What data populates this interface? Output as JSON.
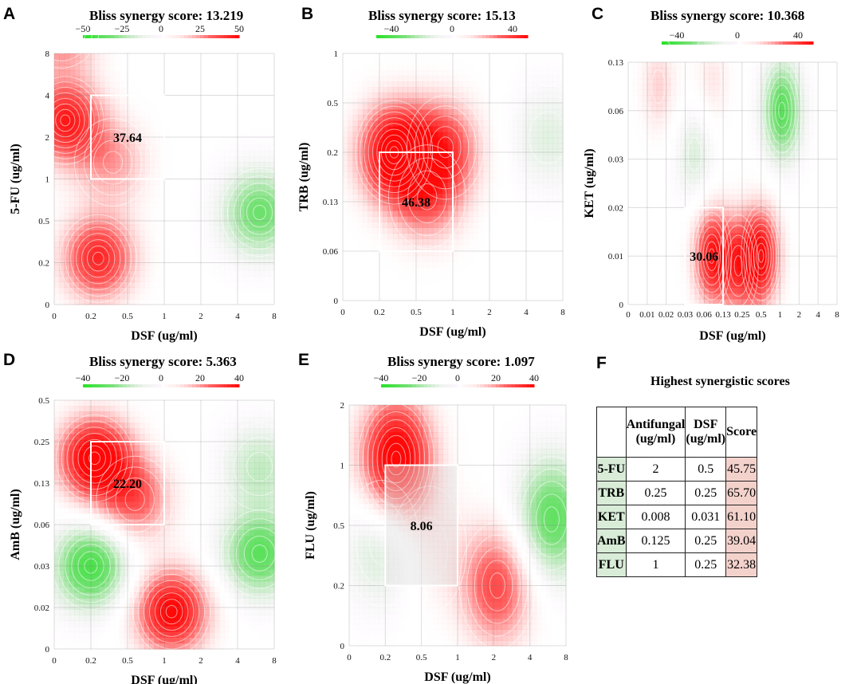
{
  "figure": {
    "ylabel_default": "ug/ml",
    "table": {
      "letter": "F",
      "title": "Highest synergistic scores",
      "headers": [
        "",
        "Antifungal (ug/ml)",
        "DSF (ug/ml)",
        "Score"
      ],
      "rows": [
        [
          "5-FU",
          "2",
          "0.5",
          "45.75"
        ],
        [
          "TRB",
          "0.25",
          "0.25",
          "65.70"
        ],
        [
          "KET",
          "0.008",
          "0.031",
          "61.10"
        ],
        [
          "AmB",
          "0.125",
          "0.25",
          "39.04"
        ],
        [
          "FLU",
          "1",
          "0.25",
          "32.38"
        ]
      ]
    }
  },
  "chart_data": [
    {
      "letter": "A",
      "type": "heatmap",
      "title": "Bliss synergy score: 13.219",
      "xlabel": "DSF  (ug/ml)",
      "ylabel": "5-FU  (ug/ml)",
      "x_ticks": [
        "0",
        "0.2",
        "0.5",
        "1",
        "2",
        "4",
        "8"
      ],
      "y_ticks": [
        "0",
        "0.2",
        "0.5",
        "1",
        "2",
        "4",
        "8"
      ],
      "colorbar_ticks": [
        "−50",
        "−25",
        "0",
        "25",
        "50"
      ],
      "colorbar_range": [
        -50,
        50
      ],
      "max_region": {
        "x_range": [
          "0.2",
          "1"
        ],
        "y_range": [
          "1",
          "4"
        ],
        "value": "37.64"
      },
      "peaks": [
        {
          "x": 0.3,
          "y": 4.4,
          "value": 45
        },
        {
          "x": 1.2,
          "y": 1.1,
          "value": 44
        },
        {
          "x": 0.2,
          "y": 6.7,
          "value": 34
        },
        {
          "x": 1.6,
          "y": 3.4,
          "value": 22
        },
        {
          "x": 5.6,
          "y": 2.2,
          "value": -34
        }
      ]
    },
    {
      "letter": "B",
      "type": "heatmap",
      "title": "Bliss synergy score: 15.13",
      "xlabel": "DSF  (ug/ml)",
      "ylabel": "TRB  (ug/ml)",
      "x_ticks": [
        "0",
        "0.2",
        "0.5",
        "1",
        "2",
        "4",
        "8"
      ],
      "y_ticks": [
        "0",
        "0.06",
        "0.13",
        "0.2",
        "0.5",
        "1"
      ],
      "colorbar_ticks": [
        "−40",
        "0",
        "40"
      ],
      "colorbar_range": [
        -50,
        50
      ],
      "max_region": {
        "x_range": [
          "0.2",
          "1"
        ],
        "y_range": [
          "0.06",
          "0.2"
        ],
        "value": "46.38"
      },
      "peaks": [
        {
          "x": 1.4,
          "y": 3.0,
          "value": 52
        },
        {
          "x": 2.3,
          "y": 2.1,
          "value": 26
        },
        {
          "x": 2.8,
          "y": 3.1,
          "value": 32
        },
        {
          "x": 5.6,
          "y": 3.3,
          "value": -14
        }
      ]
    },
    {
      "letter": "C",
      "type": "heatmap",
      "title": "Bliss synergy score: 10.368",
      "xlabel": "DSF  (ug/ml)",
      "ylabel": "KET  (ug/ml)",
      "x_ticks": [
        "0",
        "0.01",
        "0.02",
        "0.03",
        "0.06",
        "0.13",
        "0.25",
        "0.5",
        "1",
        "2",
        "4",
        "8"
      ],
      "y_ticks": [
        "0",
        "0.01",
        "0.02",
        "0.03",
        "0.06",
        "0.13"
      ],
      "colorbar_ticks": [
        "−40",
        "0",
        "40"
      ],
      "colorbar_range": [
        -50,
        50
      ],
      "max_region": {
        "x_range": [
          "0.03",
          "0.13"
        ],
        "y_range": [
          "0",
          "0.02"
        ],
        "value": "30.06"
      },
      "peaks": [
        {
          "x": 4.4,
          "y": 1.0,
          "value": 44
        },
        {
          "x": 7.0,
          "y": 1.0,
          "value": 46
        },
        {
          "x": 5.8,
          "y": 0.8,
          "value": 30
        },
        {
          "x": 8.1,
          "y": 4.0,
          "value": -38
        },
        {
          "x": 3.5,
          "y": 3.1,
          "value": -16
        },
        {
          "x": 1.6,
          "y": 4.5,
          "value": 16
        },
        {
          "x": 4.4,
          "y": 4.6,
          "value": 12
        }
      ]
    },
    {
      "letter": "D",
      "type": "heatmap",
      "title": "Bliss synergy score: 5.363",
      "xlabel": "DSF  (ug/ml)",
      "ylabel": "AmB  (ug/ml)",
      "x_ticks": [
        "0",
        "0.2",
        "0.5",
        "1",
        "2",
        "4",
        "8"
      ],
      "y_ticks": [
        "0",
        "0.02",
        "0.03",
        "0.06",
        "0.13",
        "0.25",
        "0.5"
      ],
      "colorbar_ticks": [
        "−40",
        "−20",
        "0",
        "20",
        "40"
      ],
      "colorbar_range": [
        -40,
        40
      ],
      "max_region": {
        "x_range": [
          "0.2",
          "1"
        ],
        "y_range": [
          "0.06",
          "0.25"
        ],
        "value": "22.20"
      },
      "peaks": [
        {
          "x": 1.1,
          "y": 4.6,
          "value": 44
        },
        {
          "x": 2.2,
          "y": 3.6,
          "value": 26
        },
        {
          "x": 3.2,
          "y": 0.9,
          "value": 42
        },
        {
          "x": 1.0,
          "y": 2.0,
          "value": -34
        },
        {
          "x": 5.6,
          "y": 2.3,
          "value": -30
        },
        {
          "x": 5.6,
          "y": 4.4,
          "value": -16
        }
      ]
    },
    {
      "letter": "E",
      "type": "heatmap",
      "title": "Bliss synergy score: 1.097",
      "xlabel": "DSF  (ug/ml)",
      "ylabel": "FLU  (ug/ml)",
      "x_ticks": [
        "0",
        "0.2",
        "0.5",
        "1",
        "2",
        "4",
        "8"
      ],
      "y_ticks": [
        "0",
        "0.2",
        "0.5",
        "1",
        "2"
      ],
      "colorbar_ticks": [
        "−40",
        "−20",
        "0",
        "20",
        "40"
      ],
      "colorbar_range": [
        -40,
        40
      ],
      "max_region": {
        "x_range": [
          "0.2",
          "1"
        ],
        "y_range": [
          "0.2",
          "1"
        ],
        "value": "8.06"
      },
      "peaks": [
        {
          "x": 1.3,
          "y": 3.1,
          "value": 46
        },
        {
          "x": 0.9,
          "y": 1.7,
          "value": -16
        },
        {
          "x": 2.2,
          "y": 1.6,
          "value": 8
        },
        {
          "x": 4.1,
          "y": 1.0,
          "value": 30
        },
        {
          "x": 5.6,
          "y": 2.1,
          "value": -30
        }
      ]
    }
  ]
}
